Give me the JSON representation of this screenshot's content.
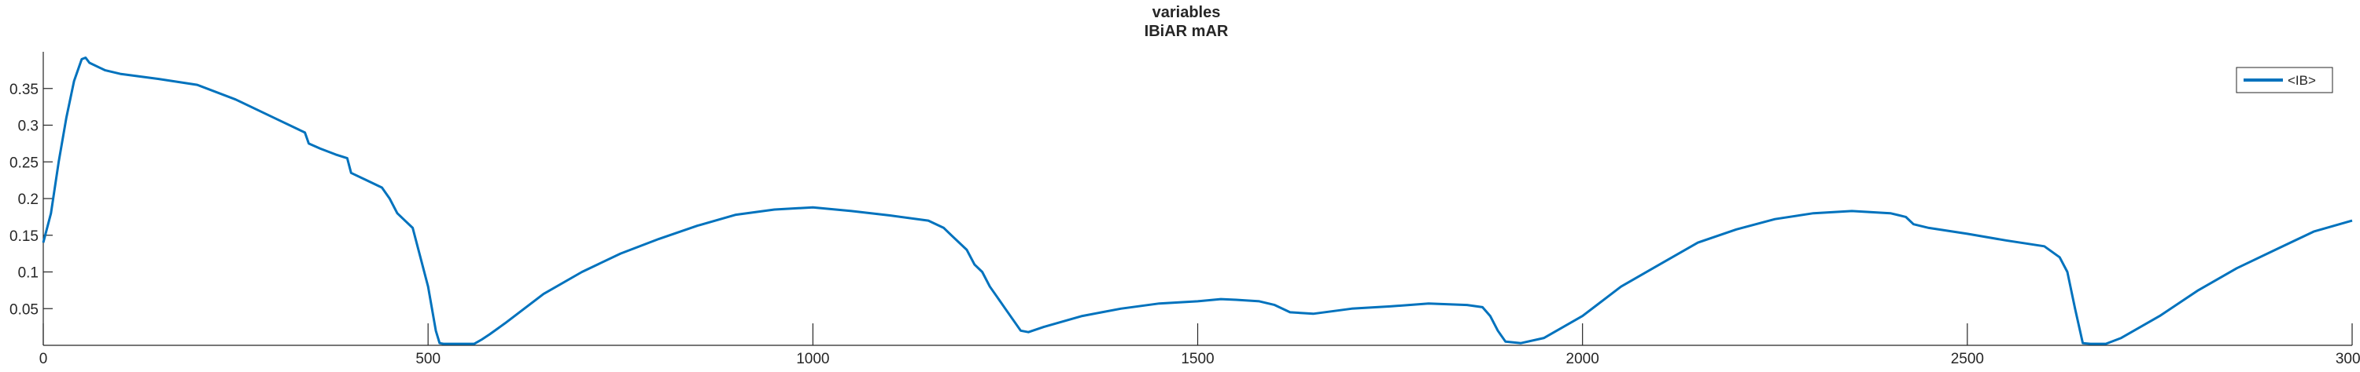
{
  "chart_data": {
    "type": "line",
    "title": "variables",
    "subtitle": "IBiAR mAR",
    "xlabel": "",
    "ylabel": "",
    "xlim": [
      0,
      3000
    ],
    "ylim": [
      0,
      0.4
    ],
    "xticks": [
      0,
      500,
      1000,
      1500,
      2000,
      2500,
      3000
    ],
    "xtick_labels": [
      "0",
      "500",
      "1000",
      "1500",
      "2000",
      "2500",
      "3000"
    ],
    "yticks": [
      0.05,
      0.1,
      0.15,
      0.2,
      0.25,
      0.3,
      0.35
    ],
    "ytick_labels": [
      "0.05",
      "0.1",
      "0.15",
      "0.2",
      "0.25",
      "0.3",
      "0.35"
    ],
    "grid": false,
    "legend_position": "top-right",
    "series": [
      {
        "name": "<IB>",
        "color": "#0072BD",
        "x": [
          0,
          10,
          20,
          30,
          40,
          50,
          55,
          60,
          80,
          100,
          150,
          200,
          250,
          300,
          340,
          345,
          360,
          380,
          395,
          400,
          420,
          440,
          450,
          460,
          470,
          480,
          490,
          500,
          510,
          515,
          520,
          525,
          540,
          560,
          570,
          580,
          600,
          650,
          700,
          750,
          800,
          850,
          900,
          950,
          1000,
          1050,
          1100,
          1150,
          1170,
          1180,
          1200,
          1210,
          1220,
          1230,
          1240,
          1250,
          1260,
          1270,
          1280,
          1300,
          1350,
          1400,
          1450,
          1500,
          1530,
          1550,
          1580,
          1600,
          1620,
          1650,
          1700,
          1750,
          1800,
          1850,
          1870,
          1880,
          1890,
          1900,
          1920,
          1950,
          2000,
          2050,
          2100,
          2150,
          2200,
          2250,
          2300,
          2350,
          2400,
          2420,
          2430,
          2450,
          2500,
          2550,
          2600,
          2620,
          2630,
          2640,
          2650,
          2660,
          2670,
          2680,
          2700,
          2750,
          2800,
          2850,
          2900,
          2950,
          3000
        ],
        "values": [
          0.14,
          0.18,
          0.25,
          0.31,
          0.36,
          0.39,
          0.392,
          0.385,
          0.375,
          0.37,
          0.363,
          0.355,
          0.335,
          0.31,
          0.29,
          0.275,
          0.268,
          0.26,
          0.255,
          0.235,
          0.225,
          0.215,
          0.2,
          0.18,
          0.17,
          0.16,
          0.12,
          0.08,
          0.02,
          0.003,
          0.002,
          0.002,
          0.002,
          0.002,
          0.008,
          0.015,
          0.03,
          0.07,
          0.1,
          0.125,
          0.145,
          0.163,
          0.178,
          0.185,
          0.188,
          0.183,
          0.177,
          0.17,
          0.16,
          0.15,
          0.13,
          0.11,
          0.1,
          0.08,
          0.065,
          0.05,
          0.035,
          0.02,
          0.018,
          0.025,
          0.04,
          0.05,
          0.057,
          0.06,
          0.063,
          0.062,
          0.06,
          0.055,
          0.045,
          0.043,
          0.05,
          0.053,
          0.057,
          0.055,
          0.052,
          0.04,
          0.02,
          0.005,
          0.003,
          0.01,
          0.04,
          0.08,
          0.11,
          0.14,
          0.158,
          0.172,
          0.18,
          0.183,
          0.18,
          0.175,
          0.165,
          0.16,
          0.152,
          0.143,
          0.135,
          0.12,
          0.1,
          0.05,
          0.003,
          0.002,
          0.002,
          0.002,
          0.01,
          0.04,
          0.075,
          0.105,
          0.13,
          0.155,
          0.17
        ]
      }
    ]
  }
}
